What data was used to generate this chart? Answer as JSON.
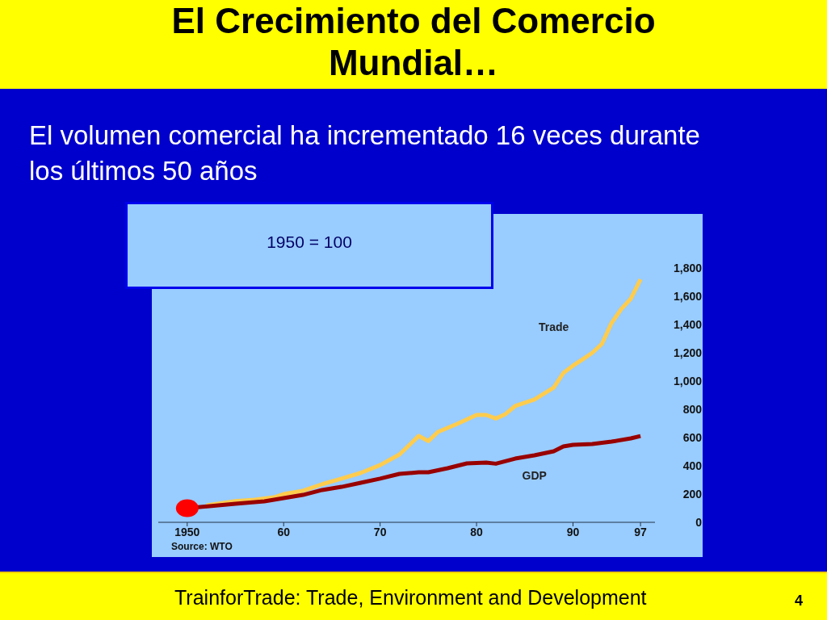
{
  "chart_data": {
    "type": "line",
    "title": "El Crecimiento del Comercio Mundial…",
    "subtitle": "El volumen comercial ha incrementado 16 veces durante los últimos 50 años",
    "annotations": [
      "1950 = 100",
      "Source: WTO",
      "TrainforTrade: Trade, Environment and Development",
      "4"
    ],
    "xlim": [
      1947,
      1998.5
    ],
    "xticks": [
      {
        "value": 1950,
        "label": "1950"
      },
      {
        "value": 1960,
        "label": "60"
      },
      {
        "value": 1970,
        "label": "70"
      },
      {
        "value": 1980,
        "label": "80"
      },
      {
        "value": 1990,
        "label": "90"
      },
      {
        "value": 1997,
        "label": "97"
      }
    ],
    "ylim": [
      0,
      1800
    ],
    "yticks": [
      0,
      200,
      400,
      600,
      800,
      {
        "value": 1000,
        "label": "1,000"
      },
      {
        "value": 1200,
        "label": "1,200"
      },
      {
        "value": 1400,
        "label": "1,400"
      },
      {
        "value": 1600,
        "label": "1,600"
      },
      {
        "value": 1800,
        "label": "1,800"
      }
    ],
    "legend": false,
    "series": [
      {
        "name": "Trade",
        "color": "#ffcc4d",
        "x": [
          1952,
          1955,
          1957,
          1959,
          1960,
          1962,
          1964,
          1966,
          1968,
          1970,
          1972,
          1974,
          1975,
          1976,
          1978,
          1980,
          1981,
          1982,
          1983,
          1984,
          1986,
          1988,
          1989,
          1990,
          1991,
          1992,
          1993,
          1994,
          1995,
          1996,
          1997
        ],
        "values": [
          120,
          150,
          160,
          177,
          200,
          223,
          270,
          309,
          350,
          405,
          480,
          611,
          575,
          640,
          697,
          760,
          760,
          735,
          766,
          823,
          869,
          954,
          1057,
          1109,
          1154,
          1200,
          1263,
          1411,
          1509,
          1583,
          1720
        ]
      },
      {
        "name": "GDP",
        "color": "#990000",
        "x": [
          1950,
          1955,
          1958,
          1960,
          1962,
          1964,
          1966,
          1968,
          1970,
          1972,
          1974,
          1975,
          1977,
          1979,
          1981,
          1982,
          1984,
          1986,
          1988,
          1989,
          1990,
          1992,
          1994,
          1996,
          1997
        ],
        "values": [
          100,
          131,
          149,
          171,
          194,
          229,
          251,
          280,
          309,
          343,
          354,
          354,
          383,
          417,
          423,
          415,
          451,
          474,
          503,
          537,
          549,
          554,
          571,
          594,
          611
        ]
      },
      {
        "type": "scatter",
        "color": "#ff0000",
        "x": [
          1950
        ],
        "values": [
          100
        ]
      }
    ]
  }
}
